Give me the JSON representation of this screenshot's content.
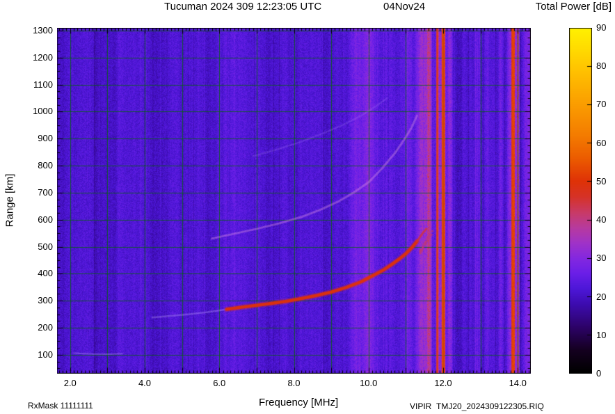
{
  "header": {
    "title": "Tucuman 2024 309 12:23:05 UTC",
    "date": "04Nov24",
    "colorbar_title": "Total Power [dB]"
  },
  "axes": {
    "xlabel": "Frequency [MHz]",
    "ylabel": "Range [km]"
  },
  "footer": {
    "rx_mask": "RxMask 11111111",
    "system": "VIPIR",
    "file": "TMJ20_2024309122305.RIQ"
  },
  "chart_data": {
    "type": "heatmap",
    "title": "Tucuman 2024 309 12:23:05 UTC  04Nov24",
    "xlabel": "Frequency [MHz]",
    "ylabel": "Range [km]",
    "xlim": [
      1.65,
      14.35
    ],
    "ylim": [
      30,
      1310
    ],
    "x_tick_values": [
      2,
      4,
      6,
      8,
      10,
      12,
      14
    ],
    "x_tick_labels": [
      "2.0",
      "4.0",
      "6.0",
      "8.0",
      "10.0",
      "12.0",
      "14.0"
    ],
    "y_tick_values": [
      100,
      200,
      300,
      400,
      500,
      600,
      700,
      800,
      900,
      1000,
      1100,
      1200,
      1300
    ],
    "grid": {
      "color": "#006900",
      "x_step": 1.0,
      "y_step": 100
    },
    "colorbar": {
      "title": "Total Power [dB]",
      "min": 0,
      "max": 90,
      "tick_values": [
        0,
        10,
        20,
        30,
        40,
        50,
        60,
        70,
        80,
        90
      ]
    },
    "colormap_stops": [
      [
        0,
        "#000000"
      ],
      [
        6,
        "#150020"
      ],
      [
        12,
        "#2d0368"
      ],
      [
        18,
        "#3d0cb0"
      ],
      [
        22,
        "#4d17d8"
      ],
      [
        26,
        "#6b1fe8"
      ],
      [
        30,
        "#8428e0"
      ],
      [
        34,
        "#a133c8"
      ],
      [
        38,
        "#b83a9e"
      ],
      [
        42,
        "#c93a66"
      ],
      [
        46,
        "#d63328"
      ],
      [
        50,
        "#df3208"
      ],
      [
        56,
        "#ec5c00"
      ],
      [
        62,
        "#f47c00"
      ],
      [
        70,
        "#fb9d00"
      ],
      [
        78,
        "#ffbe00"
      ],
      [
        84,
        "#ffd900"
      ],
      [
        90,
        "#fff200"
      ]
    ],
    "background_db": 21.5,
    "noise_amplitude_db": 5.5,
    "rfi_stripes": [
      {
        "freq": 9.75,
        "width": 0.5,
        "db": 26.5
      },
      {
        "freq": 10.05,
        "width": 0.25,
        "db": 25.5
      },
      {
        "freq": 11.05,
        "width": 0.2,
        "db": 25.0
      },
      {
        "freq": 11.45,
        "width": 0.3,
        "db": 31.0
      },
      {
        "freq": 11.62,
        "width": 0.12,
        "db": 33.0
      },
      {
        "freq": 11.84,
        "width": 0.05,
        "db": 46.0
      },
      {
        "freq": 11.95,
        "width": 0.28,
        "db": 30.0
      },
      {
        "freq": 12.0,
        "width": 0.08,
        "db": 52.0
      },
      {
        "freq": 12.18,
        "width": 0.12,
        "db": 31.0
      },
      {
        "freq": 12.42,
        "width": 0.18,
        "db": 17.5
      },
      {
        "freq": 12.95,
        "width": 0.18,
        "db": 25.0
      },
      {
        "freq": 13.15,
        "width": 0.12,
        "db": 25.0
      },
      {
        "freq": 13.55,
        "width": 0.12,
        "db": 26.5
      },
      {
        "freq": 13.85,
        "width": 0.3,
        "db": 31.0
      },
      {
        "freq": 13.87,
        "width": 0.08,
        "db": 51.0
      },
      {
        "freq": 14.0,
        "width": 0.07,
        "db": 37.0
      },
      {
        "freq": 14.25,
        "width": 0.2,
        "db": 28.0
      }
    ],
    "traces": [
      {
        "name": "E-region-echo",
        "style": "faint",
        "width": 2,
        "points": [
          [
            2.1,
            106
          ],
          [
            2.6,
            103
          ],
          [
            3.1,
            102
          ],
          [
            3.4,
            104
          ]
        ]
      },
      {
        "name": "F-trace-lead-in",
        "style": "faint",
        "width": 2.5,
        "points": [
          [
            4.2,
            238
          ],
          [
            4.7,
            244
          ],
          [
            5.2,
            250
          ],
          [
            5.7,
            258
          ],
          [
            6.2,
            268
          ]
        ]
      },
      {
        "name": "F-trace-1st-hop",
        "style": "strong",
        "width": 4.5,
        "points": [
          [
            6.2,
            268
          ],
          [
            6.6,
            276
          ],
          [
            7.0,
            283
          ],
          [
            7.4,
            290
          ],
          [
            7.8,
            298
          ],
          [
            8.2,
            308
          ],
          [
            8.6,
            319
          ],
          [
            9.0,
            332
          ],
          [
            9.4,
            349
          ],
          [
            9.8,
            370
          ],
          [
            10.1,
            392
          ],
          [
            10.4,
            414
          ],
          [
            10.6,
            432
          ],
          [
            10.8,
            452
          ],
          [
            11.0,
            474
          ],
          [
            11.15,
            495
          ],
          [
            11.3,
            520
          ]
        ]
      },
      {
        "name": "F-trace-cusp",
        "style": "medium",
        "width": 3,
        "points": [
          [
            11.3,
            520
          ],
          [
            11.4,
            540
          ],
          [
            11.48,
            555
          ],
          [
            11.55,
            566
          ]
        ]
      },
      {
        "name": "F-trace-2nd-hop",
        "style": "faint2",
        "width": 3,
        "points": [
          [
            5.8,
            530
          ],
          [
            6.4,
            548
          ],
          [
            7.0,
            566
          ],
          [
            7.6,
            586
          ],
          [
            8.2,
            610
          ],
          [
            8.7,
            636
          ],
          [
            9.2,
            668
          ],
          [
            9.6,
            700
          ],
          [
            10.0,
            738
          ],
          [
            10.35,
            788
          ],
          [
            10.7,
            845
          ],
          [
            10.95,
            895
          ],
          [
            11.15,
            940
          ],
          [
            11.3,
            985
          ]
        ]
      },
      {
        "name": "F-trace-3rd-hop",
        "style": "veryfaint",
        "width": 2.5,
        "points": [
          [
            6.9,
            835
          ],
          [
            7.5,
            858
          ],
          [
            8.1,
            884
          ],
          [
            8.7,
            915
          ],
          [
            9.3,
            950
          ],
          [
            9.8,
            985
          ],
          [
            10.2,
            1020
          ],
          [
            10.5,
            1050
          ]
        ]
      }
    ],
    "cusp_scatter": {
      "freq_range": [
        11.35,
        11.68
      ],
      "range_range": [
        470,
        565
      ],
      "count": 70
    }
  }
}
